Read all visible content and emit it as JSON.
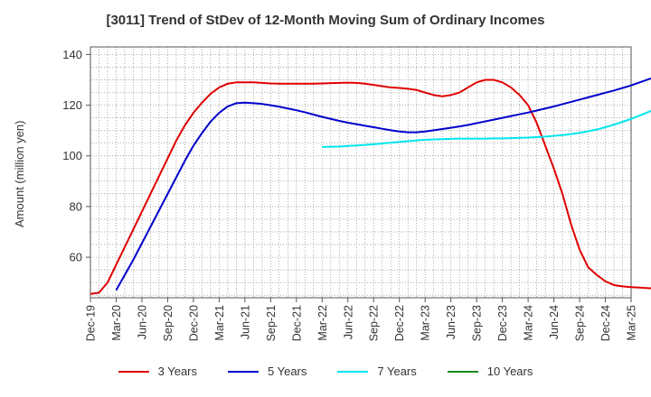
{
  "chart_data": {
    "type": "line",
    "title": "[3011]  Trend of StDev of 12-Month Moving Sum of Ordinary Incomes",
    "ylabel": "Amount (million yen)",
    "xlabel": "",
    "ylim": [
      44,
      143
    ],
    "yticks": [
      60,
      80,
      100,
      120,
      140
    ],
    "x_tick_labels": [
      "Dec-19",
      "Mar-20",
      "Jun-20",
      "Sep-20",
      "Dec-20",
      "Mar-21",
      "Jun-21",
      "Sep-21",
      "Dec-21",
      "Mar-22",
      "Jun-22",
      "Sep-22",
      "Dec-22",
      "Mar-23",
      "Jun-23",
      "Sep-23",
      "Dec-23",
      "Mar-24",
      "Jun-24",
      "Sep-24",
      "Dec-24",
      "Mar-25"
    ],
    "grid": true,
    "legend_position": "bottom",
    "series": [
      {
        "name": "3 Years",
        "color": "#e00000",
        "start_month": 0,
        "values": [
          45.5,
          46,
          50,
          57,
          64,
          71,
          78,
          85,
          92,
          99,
          106,
          112,
          117,
          121,
          124.5,
          127,
          128.5,
          129,
          129,
          129,
          128.8,
          128.6,
          128.5,
          128.5,
          128.5,
          128.5,
          128.5,
          128.6,
          128.7,
          128.8,
          128.9,
          128.8,
          128.5,
          128,
          127.5,
          127,
          126.8,
          126.5,
          126,
          125,
          124,
          123.5,
          124,
          125,
          127,
          129,
          130,
          130,
          129,
          127,
          124,
          120,
          113,
          104,
          95,
          85,
          73,
          63,
          56,
          53,
          50.5,
          49,
          48.5,
          48.2,
          48,
          47.8,
          47.6,
          47.8,
          48.3,
          49.2
        ]
      },
      {
        "name": "5 Years",
        "color": "#0000cc",
        "start_month": 3,
        "values": [
          47,
          53,
          59,
          65.5,
          72,
          78.5,
          85,
          91.5,
          98,
          104,
          109,
          113.5,
          117,
          119.5,
          120.8,
          121,
          120.8,
          120.5,
          120,
          119.4,
          118.7,
          118,
          117.2,
          116.3,
          115.4,
          114.6,
          113.8,
          113.1,
          112.5,
          111.9,
          111.3,
          110.7,
          110.1,
          109.6,
          109.3,
          109.3,
          109.6,
          110.1,
          110.6,
          111.1,
          111.6,
          112.2,
          112.9,
          113.6,
          114.3,
          115,
          115.7,
          116.4,
          117.1,
          117.9,
          118.7,
          119.5,
          120.4,
          121.3,
          122.2,
          123.1,
          124,
          124.9,
          125.8,
          126.8,
          127.8,
          129,
          130.2,
          131.3,
          132.4,
          133.6,
          135,
          136.6,
          138.2,
          139.5
        ]
      },
      {
        "name": "7 Years",
        "color": "#00e5ee",
        "start_month": 27,
        "values": [
          103.5,
          103.6,
          103.7,
          103.9,
          104.1,
          104.3,
          104.6,
          104.9,
          105.2,
          105.5,
          105.8,
          106.1,
          106.3,
          106.5,
          106.6,
          106.7,
          106.8,
          106.8,
          106.8,
          106.8,
          106.9,
          106.9,
          107,
          107.1,
          107.2,
          107.4,
          107.6,
          107.9,
          108.2,
          108.6,
          109.1,
          109.7,
          110.4,
          111.3,
          112.3,
          113.4,
          114.6,
          115.9,
          117.3,
          118.7,
          120.1
        ]
      },
      {
        "name": "10 Years",
        "color": "#1a8a1a",
        "start_month": 0,
        "values": []
      }
    ]
  }
}
